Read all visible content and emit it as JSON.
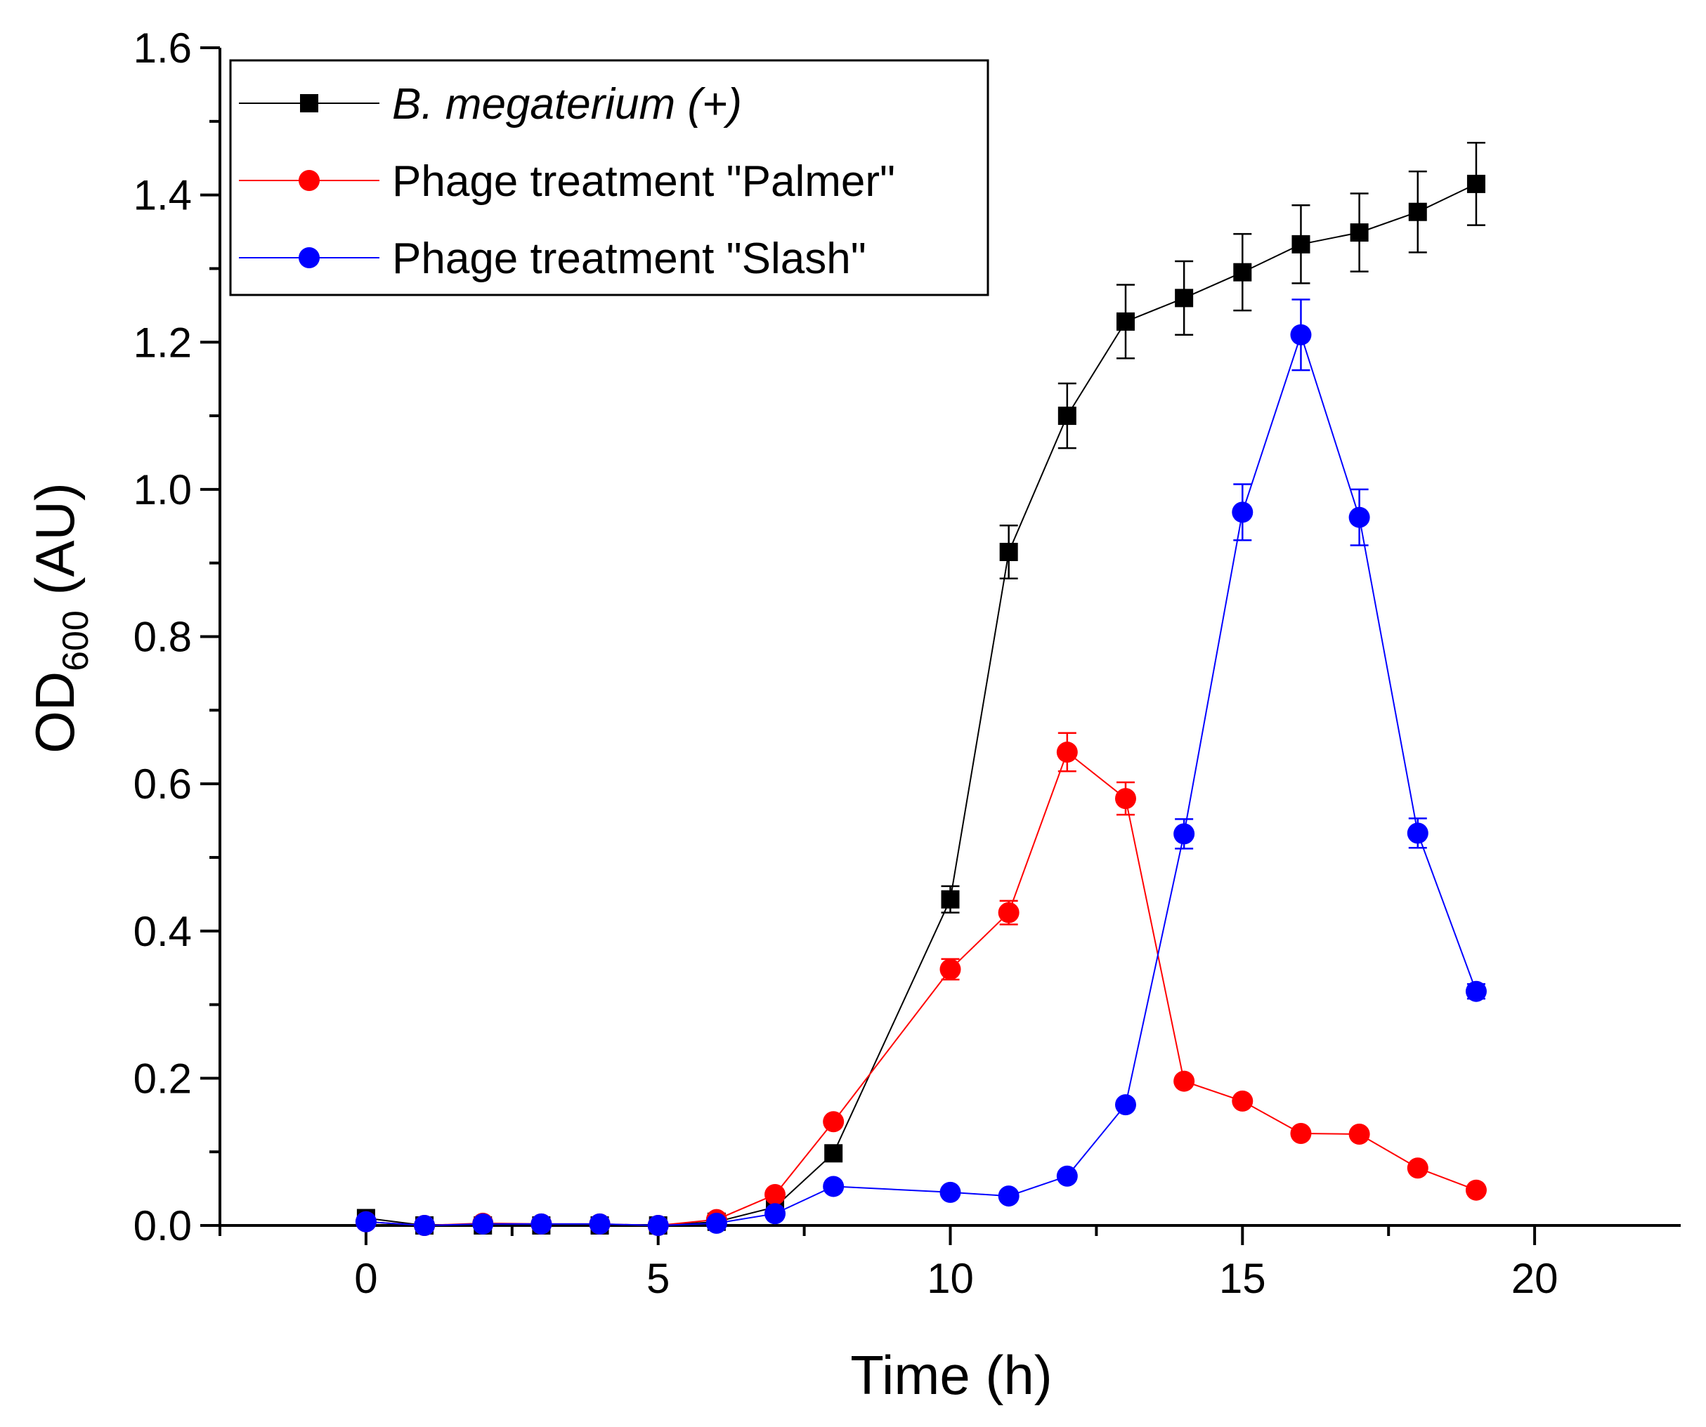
{
  "chart_data": {
    "type": "line",
    "xlabel": "Time (h)",
    "ylabel": {
      "main": "OD",
      "sub": "600",
      "unit": " (AU)"
    },
    "xlim": [
      -2.5,
      22.5
    ],
    "ylim": [
      0,
      1.6
    ],
    "xticks": [
      0,
      5,
      10,
      15,
      20
    ],
    "xtick_labels": [
      "0",
      "5",
      "10",
      "15",
      "20"
    ],
    "yticks": [
      0,
      0.2,
      0.4,
      0.6,
      0.8,
      1.0,
      1.2,
      1.4,
      1.6
    ],
    "ytick_labels": [
      "0.0",
      "0.2",
      "0.4",
      "0.6",
      "0.8",
      "1.0",
      "1.2",
      "1.4",
      "1.6"
    ],
    "grid": false,
    "legend_position": "top-left",
    "x": [
      0,
      1,
      2,
      3,
      4,
      5,
      6,
      7,
      8,
      10,
      11,
      12,
      13,
      14,
      15,
      16,
      17,
      18,
      19
    ],
    "series": [
      {
        "name": "B. megaterium (+)",
        "italic": true,
        "color": "#000000",
        "marker": "square",
        "values": [
          0.01,
          0.0,
          0.0,
          0.0,
          0.0,
          0.0,
          0.005,
          0.025,
          0.098,
          0.443,
          0.915,
          1.1,
          1.228,
          1.26,
          1.295,
          1.333,
          1.349,
          1.377,
          1.415
        ],
        "errors": [
          0,
          0,
          0,
          0,
          0,
          0,
          0,
          0,
          0,
          0.018,
          0.036,
          0.044,
          0.05,
          0.05,
          0.052,
          0.053,
          0.053,
          0.055,
          0.056
        ]
      },
      {
        "name": "Phage treatment \"Palmer\"",
        "italic": false,
        "color": "#ff0000",
        "marker": "circle",
        "values": [
          0.005,
          0.0,
          0.003,
          0.002,
          0.002,
          0.0,
          0.008,
          0.042,
          0.141,
          0.348,
          0.425,
          0.643,
          0.58,
          0.196,
          0.169,
          0.125,
          0.124,
          0.078,
          0.048
        ],
        "errors": [
          0,
          0,
          0,
          0,
          0,
          0,
          0,
          0,
          0,
          0.014,
          0.016,
          0.026,
          0.022,
          0,
          0,
          0,
          0,
          0,
          0
        ]
      },
      {
        "name": "Phage treatment \"Slash\"",
        "italic": false,
        "color": "#0000ff",
        "marker": "circle",
        "values": [
          0.005,
          0.0,
          0.002,
          0.002,
          0.002,
          0.0,
          0.003,
          0.016,
          0.053,
          0.045,
          0.04,
          0.067,
          0.164,
          0.532,
          0.969,
          1.21,
          0.962,
          0.533,
          0.318
        ],
        "errors": [
          0,
          0,
          0,
          0,
          0,
          0,
          0,
          0,
          0,
          0,
          0,
          0,
          0,
          0.02,
          0.038,
          0.048,
          0.038,
          0.02,
          0.01
        ]
      }
    ]
  }
}
